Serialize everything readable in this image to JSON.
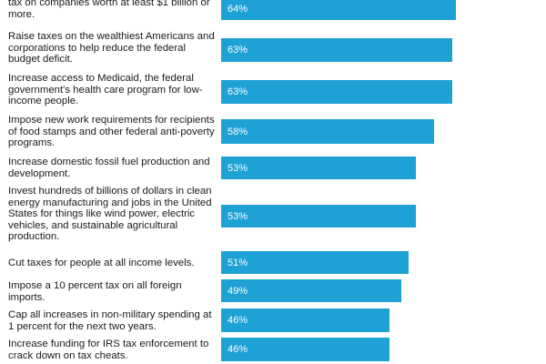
{
  "chart_data": {
    "type": "bar",
    "orientation": "horizontal",
    "xlim": [
      0,
      100
    ],
    "bar_color": "#1ea1d4",
    "label_color": "#1a1a1a",
    "value_color": "#ffffff",
    "categories": [
      "tax on companies worth at least $1 billion or more.",
      "Raise taxes on the wealthiest Americans and corporations to help reduce the federal budget deficit.",
      "Increase access to Medicaid, the federal government's health care program for low-income people.",
      "Impose new work requirements for recipients of food stamps and other federal anti-poverty programs.",
      "Increase domestic fossil fuel production and development.",
      "Invest hundreds of billions of dollars in clean energy manufacturing and jobs in the United States for things like wind power, electric vehicles, and sustainable agricultural production.",
      "Cut taxes for people at all income levels.",
      "Impose a 10 percent tax on all foreign imports.",
      "Cap all increases in non-military spending at 1 percent for the next two years.",
      "Increase funding for IRS tax enforcement to crack down on tax cheats."
    ],
    "values": [
      64,
      63,
      63,
      58,
      53,
      53,
      51,
      49,
      46,
      46
    ],
    "value_labels": [
      "64%",
      "63%",
      "63%",
      "58%",
      "53%",
      "53%",
      "51%",
      "49%",
      "46%",
      "46%"
    ]
  }
}
